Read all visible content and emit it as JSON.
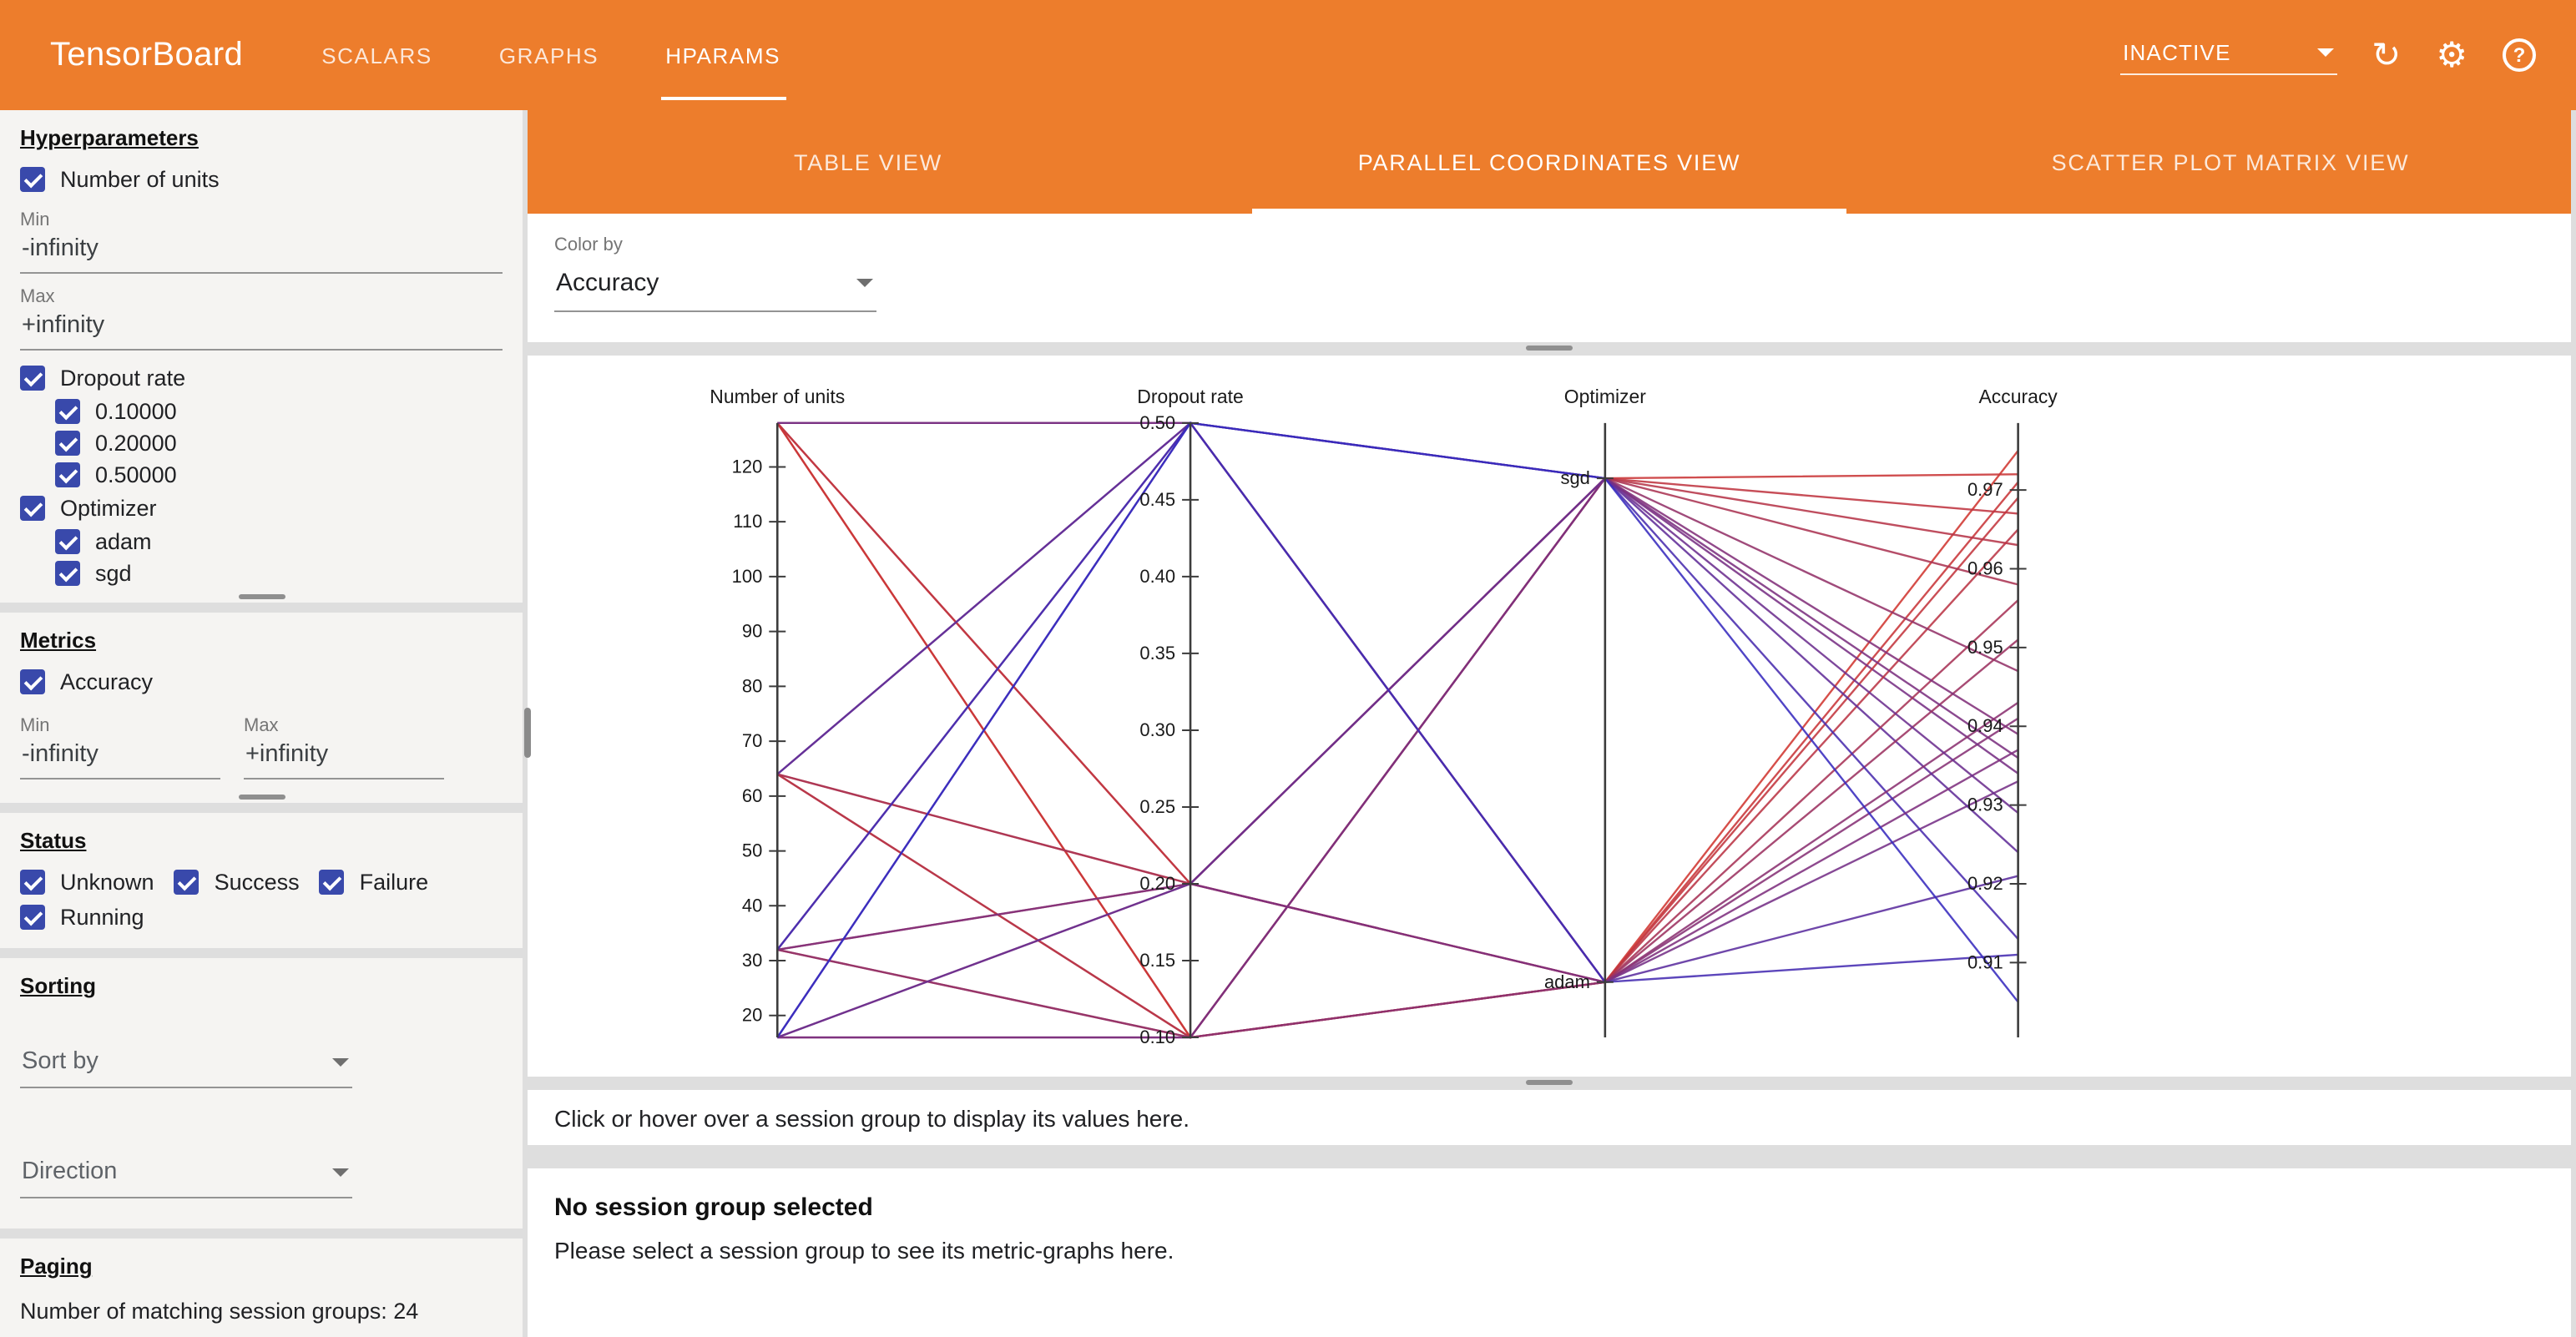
{
  "colors": {
    "toolbar_orange": "#ed7d2c",
    "checkbox_blue": "#3949ab",
    "line_color_low": "#2d2ac8",
    "line_color_high": "#d7372b",
    "panel_bg": "#ffffff",
    "page_bg": "#dedede"
  },
  "toolbar": {
    "title": "TensorBoard",
    "tabs": [
      {
        "label": "SCALARS",
        "active": false
      },
      {
        "label": "GRAPHS",
        "active": false
      },
      {
        "label": "HPARAMS",
        "active": true
      }
    ],
    "status_dropdown": "INACTIVE",
    "icons": {
      "refresh": "↻",
      "settings": "⚙",
      "help": "?"
    }
  },
  "sidebar": {
    "hyperparameters": {
      "heading": "Hyperparameters",
      "items": [
        {
          "label": "Number of units",
          "checked": true,
          "type": "range",
          "min_label": "Min",
          "min_value": "-infinity",
          "max_label": "Max",
          "max_value": "+infinity"
        },
        {
          "label": "Dropout rate",
          "checked": true,
          "type": "discrete",
          "values": [
            {
              "label": "0.10000",
              "checked": true
            },
            {
              "label": "0.20000",
              "checked": true
            },
            {
              "label": "0.50000",
              "checked": true
            }
          ]
        },
        {
          "label": "Optimizer",
          "checked": true,
          "type": "discrete",
          "values": [
            {
              "label": "adam",
              "checked": true
            },
            {
              "label": "sgd",
              "checked": true
            }
          ]
        }
      ]
    },
    "metrics": {
      "heading": "Metrics",
      "items": [
        {
          "label": "Accuracy",
          "checked": true,
          "min_label": "Min",
          "min_value": "-infinity",
          "max_label": "Max",
          "max_value": "+infinity"
        }
      ]
    },
    "status": {
      "heading": "Status",
      "options": [
        {
          "label": "Unknown",
          "checked": true
        },
        {
          "label": "Success",
          "checked": true
        },
        {
          "label": "Failure",
          "checked": true
        },
        {
          "label": "Running",
          "checked": true
        }
      ]
    },
    "sorting": {
      "heading": "Sorting",
      "sort_by_placeholder": "Sort by",
      "direction_placeholder": "Direction"
    },
    "paging": {
      "heading": "Paging",
      "summary": "Number of matching session groups: 24"
    }
  },
  "main": {
    "view_tabs": [
      {
        "label": "TABLE VIEW",
        "active": false
      },
      {
        "label": "PARALLEL COORDINATES VIEW",
        "active": true
      },
      {
        "label": "SCATTER PLOT MATRIX VIEW",
        "active": false
      }
    ],
    "color_by": {
      "label": "Color by",
      "value": "Accuracy"
    },
    "session_hint": "Click or hover over a session group to display its values here.",
    "no_selection": {
      "title": "No session group selected",
      "subtitle": "Please select a session group to see its metric-graphs here."
    }
  },
  "chart_data": {
    "type": "parallel_coordinates",
    "color_by": "Accuracy",
    "legend_position": "none",
    "color_scale": {
      "low_color": "#2d2ac8",
      "high_color": "#d7372b",
      "min": 0.9,
      "max": 0.978
    },
    "axes": [
      {
        "key": "units",
        "name": "Number of units",
        "type": "numeric",
        "domain": [
          16,
          128
        ],
        "ticks": [
          "20",
          "30",
          "40",
          "50",
          "60",
          "70",
          "80",
          "90",
          "100",
          "110",
          "120"
        ]
      },
      {
        "key": "dropout",
        "name": "Dropout rate",
        "type": "numeric",
        "domain": [
          0.1,
          0.5
        ],
        "ticks": [
          "0.10",
          "0.15",
          "0.20",
          "0.25",
          "0.30",
          "0.35",
          "0.40",
          "0.45",
          "0.50"
        ]
      },
      {
        "key": "optimizer",
        "name": "Optimizer",
        "type": "categorical",
        "categories": [
          "sgd",
          "adam"
        ],
        "positions": {
          "sgd": 0.09,
          "adam": 0.91
        }
      },
      {
        "key": "accuracy",
        "name": "Accuracy",
        "type": "numeric",
        "domain": [
          0.9005,
          0.9785
        ],
        "ticks": [
          "0.91",
          "0.92",
          "0.93",
          "0.94",
          "0.95",
          "0.96",
          "0.97"
        ]
      }
    ],
    "sessions": [
      {
        "units": 128,
        "dropout": 0.1,
        "optimizer": "adam",
        "accuracy": 0.975
      },
      {
        "units": 128,
        "dropout": 0.1,
        "optimizer": "sgd",
        "accuracy": 0.972
      },
      {
        "units": 128,
        "dropout": 0.2,
        "optimizer": "adam",
        "accuracy": 0.971
      },
      {
        "units": 128,
        "dropout": 0.2,
        "optimizer": "sgd",
        "accuracy": 0.967
      },
      {
        "units": 128,
        "dropout": 0.5,
        "optimizer": "adam",
        "accuracy": 0.941
      },
      {
        "units": 128,
        "dropout": 0.5,
        "optimizer": "sgd",
        "accuracy": 0.934
      },
      {
        "units": 64,
        "dropout": 0.1,
        "optimizer": "adam",
        "accuracy": 0.969
      },
      {
        "units": 64,
        "dropout": 0.1,
        "optimizer": "sgd",
        "accuracy": 0.963
      },
      {
        "units": 64,
        "dropout": 0.2,
        "optimizer": "adam",
        "accuracy": 0.965
      },
      {
        "units": 64,
        "dropout": 0.2,
        "optimizer": "sgd",
        "accuracy": 0.958
      },
      {
        "units": 64,
        "dropout": 0.5,
        "optimizer": "adam",
        "accuracy": 0.933
      },
      {
        "units": 64,
        "dropout": 0.5,
        "optimizer": "sgd",
        "accuracy": 0.924
      },
      {
        "units": 32,
        "dropout": 0.1,
        "optimizer": "adam",
        "accuracy": 0.956
      },
      {
        "units": 32,
        "dropout": 0.1,
        "optimizer": "sgd",
        "accuracy": 0.947
      },
      {
        "units": 32,
        "dropout": 0.2,
        "optimizer": "adam",
        "accuracy": 0.951
      },
      {
        "units": 32,
        "dropout": 0.2,
        "optimizer": "sgd",
        "accuracy": 0.939
      },
      {
        "units": 32,
        "dropout": 0.5,
        "optimizer": "adam",
        "accuracy": 0.921
      },
      {
        "units": 32,
        "dropout": 0.5,
        "optimizer": "sgd",
        "accuracy": 0.913
      },
      {
        "units": 16,
        "dropout": 0.1,
        "optimizer": "adam",
        "accuracy": 0.943
      },
      {
        "units": 16,
        "dropout": 0.1,
        "optimizer": "sgd",
        "accuracy": 0.936
      },
      {
        "units": 16,
        "dropout": 0.2,
        "optimizer": "adam",
        "accuracy": 0.937
      },
      {
        "units": 16,
        "dropout": 0.2,
        "optimizer": "sgd",
        "accuracy": 0.929
      },
      {
        "units": 16,
        "dropout": 0.5,
        "optimizer": "adam",
        "accuracy": 0.911
      },
      {
        "units": 16,
        "dropout": 0.5,
        "optimizer": "sgd",
        "accuracy": 0.905
      }
    ]
  }
}
